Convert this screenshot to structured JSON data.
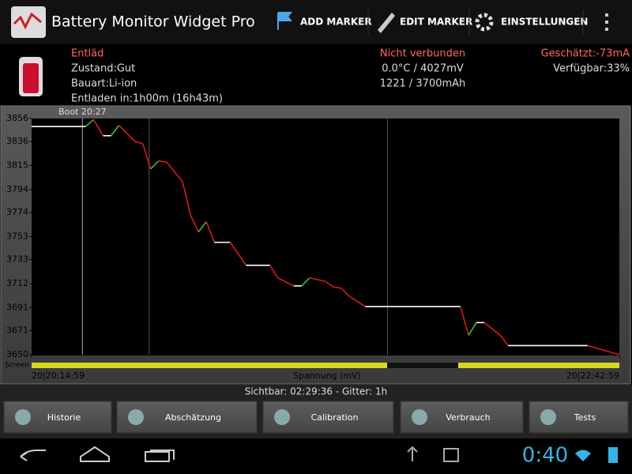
{
  "app_bar": {
    "title": "Battery Monitor Widget Pro",
    "actions": [
      "ADD MARKER",
      "EDIT MARKER",
      "EINSTELLUNGEN"
    ]
  },
  "status": {
    "left": [
      "Entläd",
      "Zustand:Gut",
      "Bauart:Li-ion",
      "Entladen in:1h00m (16h43m)"
    ],
    "center": [
      "Nicht verbunden",
      "0.0°C / 4027mV",
      "1221 / 3700mAh"
    ],
    "right": [
      "Geschätzt:-73mA",
      "Verfügbar:33%"
    ]
  },
  "chart_data": {
    "type": "line",
    "x_label": "Spannung (mV)",
    "screen_label": "Screen",
    "x": [
      0,
      13.6,
      15.6,
      18,
      20,
      22,
      26,
      28,
      30,
      32,
      34,
      38,
      40,
      42,
      44,
      46,
      50,
      54,
      60,
      62,
      66,
      68,
      70,
      74,
      76,
      78,
      80,
      84,
      108,
      110,
      112,
      114,
      118,
      120,
      140,
      148
    ],
    "series": [
      {
        "name": "Spannung",
        "values": [
          3849,
          3849,
          3855,
          3841,
          3841,
          3850,
          3836,
          3834,
          3812,
          3819,
          3818,
          3801,
          3772,
          3757,
          3766,
          3748,
          3748,
          3728,
          3728,
          3717,
          3710,
          3710,
          3717,
          3714,
          3709,
          3708,
          3701,
          3692,
          3692,
          3667,
          3678,
          3678,
          3667,
          3658,
          3658,
          3650
        ]
      }
    ],
    "colors": {
      "up": "#33c533",
      "down": "#e01818",
      "flat": "#ffffff"
    },
    "xlim": [
      0,
      148
    ],
    "xticks": [
      {
        "value": 0,
        "label": "20|20:14:59"
      },
      {
        "value": 148,
        "label": "20|22:42:59"
      }
    ],
    "xgrid": [
      29.6,
      89.6
    ],
    "markers": [
      {
        "x": 12.8,
        "label": "Boot 20:27"
      }
    ],
    "ylim": [
      3650,
      3856
    ],
    "yticks": [
      3650,
      3671,
      3691,
      3712,
      3733,
      3753,
      3774,
      3794,
      3815,
      3836,
      3856
    ]
  },
  "footer": {
    "info": "Sichtbar: 02:29:36 - Gitter: 1h",
    "buttons": [
      "Historie",
      "Abschätzung",
      "Calibration",
      "Verbrauch",
      "Tests"
    ]
  },
  "system_bar": {
    "clock": "0:40"
  }
}
